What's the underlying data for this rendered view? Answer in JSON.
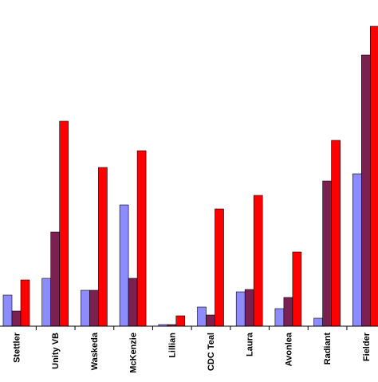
{
  "chart_data": {
    "type": "bar",
    "title": "",
    "xlabel": "",
    "ylabel": "",
    "categories": [
      "Stettler",
      "Unity VB",
      "Waskeda",
      "McKenzie",
      "Lillian",
      "CDC Teal",
      "Laura",
      "Avonlea",
      "Radiant",
      "Fielder"
    ],
    "series": [
      {
        "values": [
          39,
          60,
          45,
          152,
          2,
          24,
          43,
          22,
          10,
          191
        ]
      },
      {
        "values": [
          19,
          118,
          45,
          60,
          2,
          14,
          46,
          36,
          182,
          340
        ]
      },
      {
        "values": [
          58,
          257,
          199,
          220,
          13,
          147,
          164,
          93,
          233,
          376
        ]
      }
    ],
    "ylim": [
      0,
      376
    ],
    "grid": false,
    "colors": [
      "#8C8CFF",
      "#7B2151",
      "#FF0000"
    ]
  }
}
